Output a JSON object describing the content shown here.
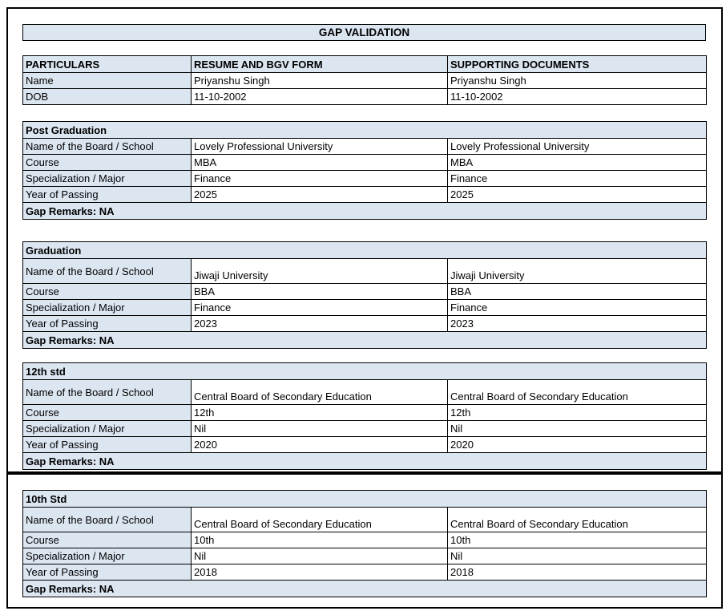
{
  "page": {
    "title_bar": "GAP VALIDATION"
  },
  "colors": {
    "header_fill": "#DCE6F1",
    "border": "#000000",
    "text": "#000000"
  },
  "particulars": {
    "headers": [
      "PARTICULARS",
      "RESUME AND BGV FORM",
      "SUPPORTING DOCUMENTS"
    ],
    "rows": [
      {
        "label": "Name",
        "resume": "Priyanshu Singh",
        "supporting": "Priyanshu Singh"
      },
      {
        "label": "DOB",
        "resume": "11-10-2002",
        "supporting": "11-10-2002"
      }
    ]
  },
  "sections": [
    {
      "title": "Post Graduation",
      "rows": [
        {
          "label": "Name of the Board / School",
          "resume": "Lovely Professional University",
          "supporting": "Lovely Professional University"
        },
        {
          "label": "Course",
          "resume": "MBA",
          "supporting": "MBA"
        },
        {
          "label": "Specialization / Major",
          "resume": "Finance",
          "supporting": "Finance"
        },
        {
          "label": "Year of Passing",
          "resume": "2025",
          "supporting": "2025"
        }
      ],
      "gap_remarks": "Gap Remarks: NA"
    },
    {
      "title": "Graduation",
      "rows": [
        {
          "label": "Name of the Board / School",
          "resume": "Jiwaji University",
          "supporting": "Jiwaji University"
        },
        {
          "label": "Course",
          "resume": "BBA",
          "supporting": "BBA"
        },
        {
          "label": "Specialization / Major",
          "resume": "Finance",
          "supporting": "Finance"
        },
        {
          "label": "Year of Passing",
          "resume": "2023",
          "supporting": "2023"
        }
      ],
      "gap_remarks": "Gap Remarks: NA"
    },
    {
      "title": "12th std",
      "rows": [
        {
          "label": "Name of the Board / School",
          "resume": "Central Board of Secondary Education",
          "supporting": "Central Board of Secondary Education"
        },
        {
          "label": "Course",
          "resume": "12th",
          "supporting": "12th"
        },
        {
          "label": "Specialization / Major",
          "resume": "Nil",
          "supporting": "Nil"
        },
        {
          "label": "Year of Passing",
          "resume": "2020",
          "supporting": "2020"
        }
      ],
      "gap_remarks": "Gap Remarks: NA"
    },
    {
      "title": "10th Std",
      "rows": [
        {
          "label": "Name of the Board / School",
          "resume": "Central Board of Secondary Education",
          "supporting": "Central Board of Secondary Education"
        },
        {
          "label": "Course",
          "resume": "10th",
          "supporting": "10th"
        },
        {
          "label": "Specialization / Major",
          "resume": "Nil",
          "supporting": "Nil"
        },
        {
          "label": "Year of Passing",
          "resume": "2018",
          "supporting": "2018"
        }
      ],
      "gap_remarks": "Gap Remarks: NA"
    }
  ]
}
